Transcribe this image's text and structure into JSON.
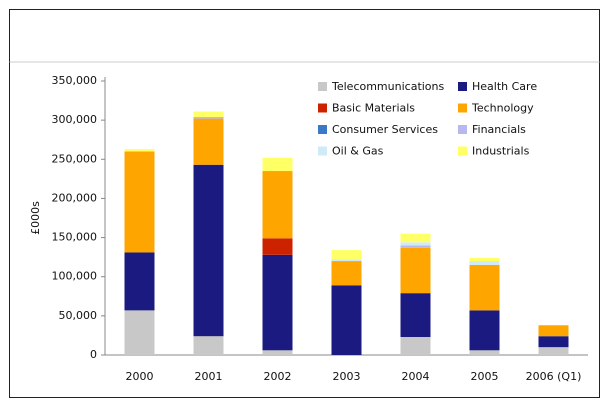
{
  "chart_data": {
    "type": "stacked-bar",
    "y_label": "£000s",
    "categories": [
      "2000",
      "2001",
      "2002",
      "2003",
      "2004",
      "2005",
      "2006 (Q1)"
    ],
    "series": [
      {
        "name": "Telecommunications",
        "color": "#c8c8c8",
        "values": [
          57000,
          24000,
          6000,
          0,
          23000,
          6000,
          10000
        ]
      },
      {
        "name": "Health Care",
        "color": "#1a1a80",
        "values": [
          74000,
          219000,
          122000,
          89000,
          56000,
          51000,
          14000
        ]
      },
      {
        "name": "Basic Materials",
        "color": "#cc2200",
        "values": [
          0,
          0,
          21000,
          0,
          0,
          0,
          0
        ]
      },
      {
        "name": "Technology",
        "color": "#ffa500",
        "values": [
          129000,
          59000,
          86000,
          31000,
          58000,
          58000,
          14000
        ]
      },
      {
        "name": "Consumer Services",
        "color": "#3a78c8",
        "values": [
          0,
          0,
          0,
          0,
          0,
          0,
          0
        ]
      },
      {
        "name": "Financials",
        "color": "#b8b8f0",
        "values": [
          0,
          2000,
          0,
          0,
          3000,
          0,
          0
        ]
      },
      {
        "name": "Oil & Gas",
        "color": "#d0eaf8",
        "values": [
          0,
          0,
          0,
          2000,
          4000,
          5000,
          0
        ]
      },
      {
        "name": "Industrials",
        "color": "#ffff66",
        "values": [
          3000,
          7000,
          17000,
          12000,
          11000,
          4000,
          0
        ]
      }
    ],
    "ylim": [
      0,
      350000
    ],
    "yticks": [
      0,
      {
        "value": 50000,
        "label": "50,000"
      },
      {
        "value": 100000,
        "label": "100,000"
      },
      {
        "value": 150000,
        "label": "150,000"
      },
      {
        "value": 200000,
        "label": "200,000"
      },
      {
        "value": 250000,
        "label": "250,000"
      },
      {
        "value": 300000,
        "label": "300,000"
      },
      {
        "value": 350000,
        "label": "350,000"
      }
    ],
    "grid": false
  }
}
